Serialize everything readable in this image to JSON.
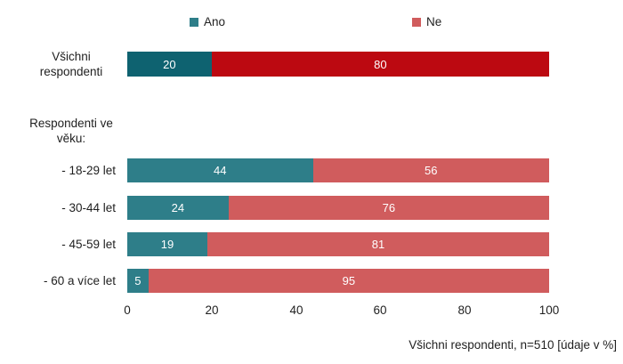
{
  "colors": {
    "ano_dark": "#0E6270",
    "ne_dark": "#BC0911",
    "ano_light": "#2E7E89",
    "ne_light": "#D05C5D"
  },
  "legend": {
    "ano": "Ano",
    "ne": "Ne"
  },
  "group_label": {
    "line1": "Respondenti ve",
    "line2": "věku:"
  },
  "axis": {
    "ticks": [
      "0",
      "20",
      "40",
      "60",
      "80",
      "100"
    ]
  },
  "footnote": "Všichni respondenti, n=510 [údaje v %]",
  "chart_data": {
    "type": "bar",
    "orientation": "horizontal",
    "stacked": true,
    "title": "",
    "xlabel": "",
    "ylabel": "",
    "xlim": [
      0,
      100
    ],
    "x_ticks": [
      0,
      20,
      40,
      60,
      80,
      100
    ],
    "legend_entries": [
      "Ano",
      "Ne"
    ],
    "legend_position": "top",
    "grid": false,
    "annotation": "Všichni respondenti, n=510 [údaje v %]",
    "categories": [
      "Všichni respondenti",
      "- 18-29 let",
      "- 30-44 let",
      "- 45-59 let",
      "- 60 a více let"
    ],
    "series": [
      {
        "name": "Ano",
        "values": [
          20,
          44,
          24,
          19,
          5
        ]
      },
      {
        "name": "Ne",
        "values": [
          80,
          56,
          76,
          81,
          95
        ]
      }
    ],
    "rows": [
      {
        "label_line1": "Všichni",
        "label_line2": "respondenti",
        "ano": 20,
        "ne": 80
      },
      {
        "label": "- 18-29 let",
        "ano": 44,
        "ne": 56
      },
      {
        "label": "- 30-44 let",
        "ano": 24,
        "ne": 76
      },
      {
        "label": "- 45-59 let",
        "ano": 19,
        "ne": 81
      },
      {
        "label": "- 60 a více let",
        "ano": 5,
        "ne": 95
      }
    ]
  }
}
